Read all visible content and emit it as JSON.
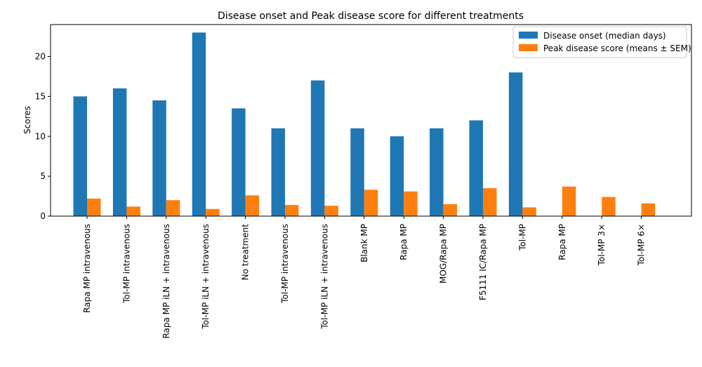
{
  "chart_data": {
    "type": "bar",
    "title": "Disease onset and Peak disease score for different treatments",
    "xlabel": "",
    "ylabel": "Scores",
    "ylim": [
      0,
      24
    ],
    "yticks": [
      0,
      5,
      10,
      15,
      20
    ],
    "grid": false,
    "legend_position": "top-right",
    "categories": [
      "Rapa MP intravenous",
      "Tol-MP intravenous",
      "Rapa MP iLN + intravenous",
      "Tol-MP iLN + intravenous",
      "No treatment",
      "Tol-MP intravenous",
      "Tol-MP iLN + intravenous",
      "Blank MP",
      "Rapa MP",
      "MOG/Rapa MP",
      "F5111 IC/Rapa MP",
      "Tol-MP",
      "Rapa MP",
      "Tol-MP 3×",
      "Tol-MP 6×"
    ],
    "series": [
      {
        "name": "Disease onset (median days)",
        "color": "#1f77b4",
        "values": [
          15,
          16,
          14.5,
          23,
          13.5,
          11,
          17,
          11,
          10,
          11,
          12,
          18,
          null,
          null,
          null
        ]
      },
      {
        "name": "Peak disease score (means ± SEM)",
        "color": "#ff7f0e",
        "values": [
          2.2,
          1.2,
          2.0,
          0.9,
          2.6,
          1.4,
          1.3,
          3.3,
          3.1,
          1.5,
          3.5,
          1.1,
          3.7,
          2.4,
          1.6
        ]
      }
    ]
  }
}
